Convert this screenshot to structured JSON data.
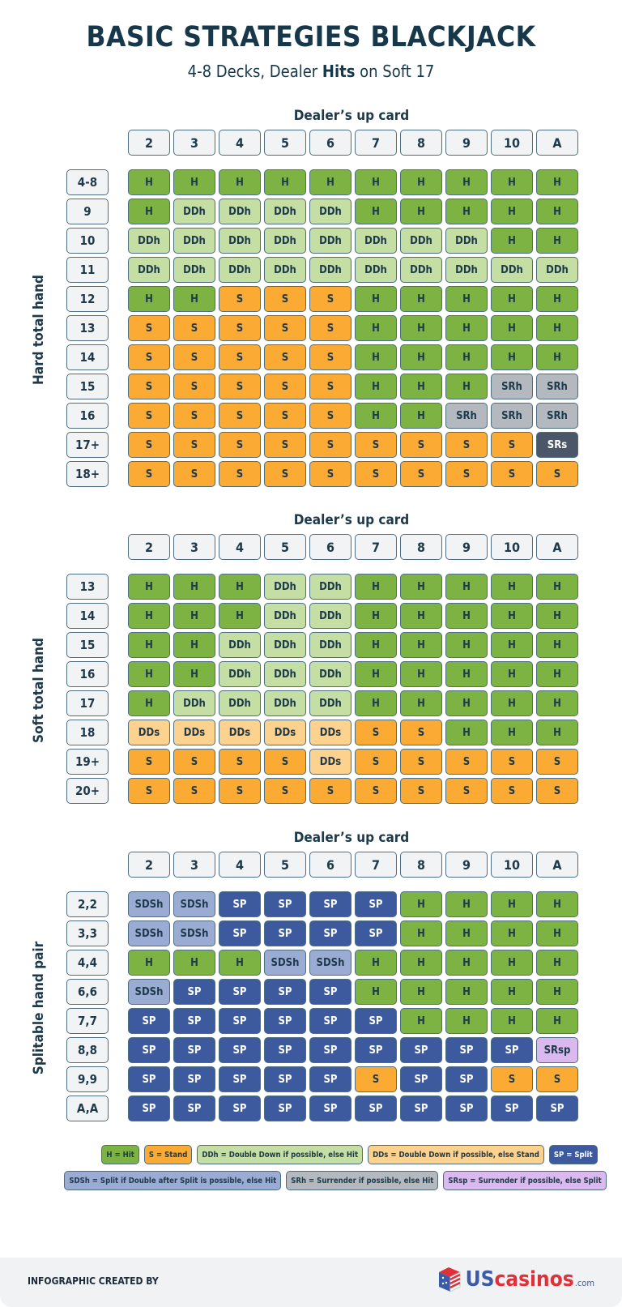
{
  "title": "BASIC STRATEGIES BLACKJACK",
  "subtitle_pre": "4-8 Decks, Dealer ",
  "subtitle_bold": "Hits",
  "subtitle_post": " on Soft 17",
  "dealer_cards": [
    "2",
    "3",
    "4",
    "5",
    "6",
    "7",
    "8",
    "9",
    "10",
    "A"
  ],
  "colors": {
    "H": {
      "bg": "#7cb342",
      "fg": "#1e3a4a"
    },
    "S": {
      "bg": "#fbaa34",
      "fg": "#1e3a4a"
    },
    "DDh": {
      "bg": "#c4dea4",
      "fg": "#1e3a4a"
    },
    "DDs": {
      "bg": "#fdd18e",
      "fg": "#1e3a4a"
    },
    "SP": {
      "bg": "#3d5a9f",
      "fg": "#ffffff"
    },
    "SDSh": {
      "bg": "#9aacd3",
      "fg": "#1e3a4a"
    },
    "SRh": {
      "bg": "#b4b9bf",
      "fg": "#1e3a4a"
    },
    "SRs": {
      "bg": "#4b5668",
      "fg": "#ffffff"
    },
    "SRsp": {
      "bg": "#d9b9ee",
      "fg": "#1e3a4a"
    }
  },
  "sections": [
    {
      "dealer_label": "Dealer’s up card",
      "side_label": "Hard total hand",
      "rows": [
        {
          "label": "4-8",
          "cells": [
            "H",
            "H",
            "H",
            "H",
            "H",
            "H",
            "H",
            "H",
            "H",
            "H"
          ]
        },
        {
          "label": "9",
          "cells": [
            "H",
            "DDh",
            "DDh",
            "DDh",
            "DDh",
            "H",
            "H",
            "H",
            "H",
            "H"
          ]
        },
        {
          "label": "10",
          "cells": [
            "DDh",
            "DDh",
            "DDh",
            "DDh",
            "DDh",
            "DDh",
            "DDh",
            "DDh",
            "H",
            "H"
          ]
        },
        {
          "label": "11",
          "cells": [
            "DDh",
            "DDh",
            "DDh",
            "DDh",
            "DDh",
            "DDh",
            "DDh",
            "DDh",
            "DDh",
            "DDh"
          ]
        },
        {
          "label": "12",
          "cells": [
            "H",
            "H",
            "S",
            "S",
            "S",
            "H",
            "H",
            "H",
            "H",
            "H"
          ]
        },
        {
          "label": "13",
          "cells": [
            "S",
            "S",
            "S",
            "S",
            "S",
            "H",
            "H",
            "H",
            "H",
            "H"
          ]
        },
        {
          "label": "14",
          "cells": [
            "S",
            "S",
            "S",
            "S",
            "S",
            "H",
            "H",
            "H",
            "H",
            "H"
          ]
        },
        {
          "label": "15",
          "cells": [
            "S",
            "S",
            "S",
            "S",
            "S",
            "H",
            "H",
            "H",
            "SRh",
            "SRh"
          ]
        },
        {
          "label": "16",
          "cells": [
            "S",
            "S",
            "S",
            "S",
            "S",
            "H",
            "H",
            "SRh",
            "SRh",
            "SRh"
          ]
        },
        {
          "label": "17+",
          "cells": [
            "S",
            "S",
            "S",
            "S",
            "S",
            "S",
            "S",
            "S",
            "S",
            "SRs"
          ]
        },
        {
          "label": "18+",
          "cells": [
            "S",
            "S",
            "S",
            "S",
            "S",
            "S",
            "S",
            "S",
            "S",
            "S"
          ]
        }
      ]
    },
    {
      "dealer_label": "Dealer’s up card",
      "side_label": "Soft total hand",
      "rows": [
        {
          "label": "13",
          "cells": [
            "H",
            "H",
            "H",
            "DDh",
            "DDh",
            "H",
            "H",
            "H",
            "H",
            "H"
          ]
        },
        {
          "label": "14",
          "cells": [
            "H",
            "H",
            "H",
            "DDh",
            "DDh",
            "H",
            "H",
            "H",
            "H",
            "H"
          ]
        },
        {
          "label": "15",
          "cells": [
            "H",
            "H",
            "DDh",
            "DDh",
            "DDh",
            "H",
            "H",
            "H",
            "H",
            "H"
          ]
        },
        {
          "label": "16",
          "cells": [
            "H",
            "H",
            "DDh",
            "DDh",
            "DDh",
            "H",
            "H",
            "H",
            "H",
            "H"
          ]
        },
        {
          "label": "17",
          "cells": [
            "H",
            "DDh",
            "DDh",
            "DDh",
            "DDh",
            "H",
            "H",
            "H",
            "H",
            "H"
          ]
        },
        {
          "label": "18",
          "cells": [
            "DDs",
            "DDs",
            "DDs",
            "DDs",
            "DDs",
            "S",
            "S",
            "H",
            "H",
            "H"
          ]
        },
        {
          "label": "19+",
          "cells": [
            "S",
            "S",
            "S",
            "S",
            "DDs",
            "S",
            "S",
            "S",
            "S",
            "S"
          ]
        },
        {
          "label": "20+",
          "cells": [
            "S",
            "S",
            "S",
            "S",
            "S",
            "S",
            "S",
            "S",
            "S",
            "S"
          ]
        }
      ]
    },
    {
      "dealer_label": "Dealer’s up card",
      "side_label": "Splitable hand pair",
      "rows": [
        {
          "label": "2,2",
          "cells": [
            "SDSh",
            "SDSh",
            "SP",
            "SP",
            "SP",
            "SP",
            "H",
            "H",
            "H",
            "H"
          ]
        },
        {
          "label": "3,3",
          "cells": [
            "SDSh",
            "SDSh",
            "SP",
            "SP",
            "SP",
            "SP",
            "H",
            "H",
            "H",
            "H"
          ]
        },
        {
          "label": "4,4",
          "cells": [
            "H",
            "H",
            "H",
            "SDSh",
            "SDSh",
            "H",
            "H",
            "H",
            "H",
            "H"
          ]
        },
        {
          "label": "6,6",
          "cells": [
            "SDSh",
            "SP",
            "SP",
            "SP",
            "SP",
            "H",
            "H",
            "H",
            "H",
            "H"
          ]
        },
        {
          "label": "7,7",
          "cells": [
            "SP",
            "SP",
            "SP",
            "SP",
            "SP",
            "SP",
            "H",
            "H",
            "H",
            "H"
          ]
        },
        {
          "label": "8,8",
          "cells": [
            "SP",
            "SP",
            "SP",
            "SP",
            "SP",
            "SP",
            "SP",
            "SP",
            "SP",
            "SRsp"
          ]
        },
        {
          "label": "9,9",
          "cells": [
            "SP",
            "SP",
            "SP",
            "SP",
            "SP",
            "S",
            "SP",
            "SP",
            "S",
            "S"
          ]
        },
        {
          "label": "A,A",
          "cells": [
            "SP",
            "SP",
            "SP",
            "SP",
            "SP",
            "SP",
            "SP",
            "SP",
            "SP",
            "SP"
          ]
        }
      ]
    }
  ],
  "legend": [
    [
      {
        "code": "H",
        "text": "H = Hit"
      },
      {
        "code": "S",
        "text": "S = Stand"
      },
      {
        "code": "DDh",
        "text": "DDh = Double Down if possible, else Hit"
      },
      {
        "code": "DDs",
        "text": "DDs = Double Down if possible, else Stand"
      },
      {
        "code": "SP",
        "text": "SP = Split"
      }
    ],
    [
      {
        "code": "SDSh",
        "text": "SDSh = Split if Double after Split is possible, else Hit"
      },
      {
        "code": "SRh",
        "text": "SRh = Surrender if possible, else Hit"
      },
      {
        "code": "SRsp",
        "text": "SRsp = Surrender if possible, else Split"
      }
    ]
  ],
  "footer": {
    "credit": "INFOGRAPHIC CREATED BY",
    "logo_us": "US",
    "logo_casinos": "casinos",
    "logo_com": ".com"
  }
}
